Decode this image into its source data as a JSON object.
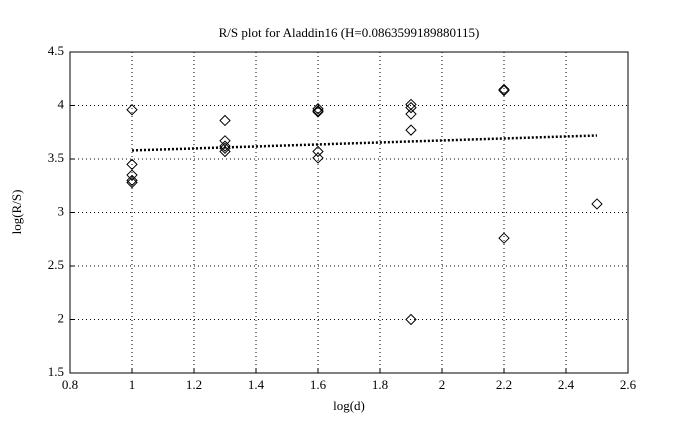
{
  "chart_data": {
    "type": "scatter",
    "title": "R/S plot for Aladdin16 (H=0.0863599189880115)",
    "x_label": "log(d)",
    "y_label": "log(R/S)",
    "xlim": [
      0.8,
      2.6
    ],
    "xticks": [
      0.8,
      1,
      1.2,
      1.4,
      1.6,
      1.8,
      2,
      2.2,
      2.4,
      2.6
    ],
    "ylim": [
      1.5,
      4.5
    ],
    "yticks": [
      1.5,
      2,
      2.5,
      3,
      3.5,
      4,
      4.5
    ],
    "grid": true,
    "series": [
      {
        "kind": "markers",
        "color": "#000000",
        "x": [
          1,
          1,
          1,
          1,
          1,
          1.3,
          1.3,
          1.3,
          1.3,
          1.3,
          1.6,
          1.6,
          1.6,
          1.6,
          1.6,
          1.9,
          1.9,
          1.9,
          1.9,
          1.9,
          2.2,
          2.2,
          2.2,
          2.5
        ],
        "values": [
          3.96,
          3.45,
          3.35,
          3.3,
          3.28,
          3.86,
          3.67,
          3.62,
          3.6,
          3.57,
          3.97,
          3.95,
          3.94,
          3.57,
          3.51,
          4.01,
          3.98,
          3.92,
          3.77,
          2.0,
          4.15,
          4.14,
          2.76,
          3.08
        ]
      },
      {
        "kind": "dotted-line",
        "color": "#000000",
        "x": [
          1,
          2.5
        ],
        "values": [
          3.58,
          3.72
        ]
      }
    ]
  }
}
